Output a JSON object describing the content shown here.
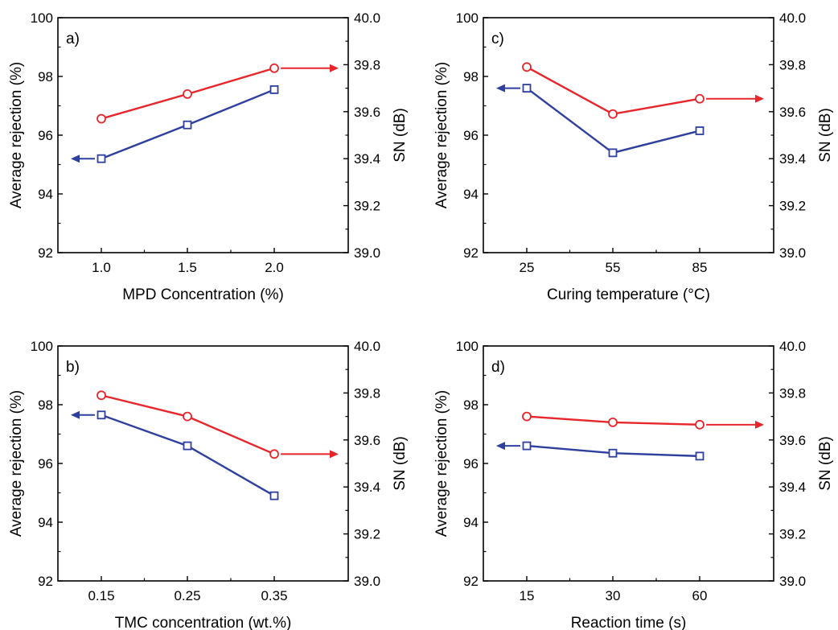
{
  "figure": {
    "colors": {
      "rejection_series": "#2e3f9e",
      "sn_series": "#e8252b",
      "axis": "#000000"
    }
  },
  "chart_data": [
    {
      "type": "line",
      "panel_label": "a)",
      "xlabel": "MPD Concentration (%)",
      "ylabel_left": "Average rejection (%)",
      "ylabel_right": "SN (dB)",
      "categories": [
        "1.0",
        "1.5",
        "2.0"
      ],
      "ylim_left": [
        92,
        100
      ],
      "yticks_left": [
        "92",
        "94",
        "96",
        "98",
        "100"
      ],
      "ylim_right": [
        39.0,
        40.0
      ],
      "yticks_right": [
        "39.0",
        "39.2",
        "39.4",
        "39.6",
        "39.8",
        "40.0"
      ],
      "series": [
        {
          "axis": "left",
          "marker": "square",
          "color": "#2e3f9e",
          "values": [
            95.2,
            96.35,
            97.55
          ]
        },
        {
          "axis": "right",
          "marker": "circle",
          "color": "#e8252b",
          "values": [
            39.57,
            39.675,
            39.785
          ]
        }
      ],
      "arrows": {
        "left_series_points_to": "left",
        "right_series_points_to": "right"
      }
    },
    {
      "type": "line",
      "panel_label": "c)",
      "xlabel": "Curing temperature (°C)",
      "ylabel_left": "Average rejection (%)",
      "ylabel_right": "SN (dB)",
      "categories": [
        "25",
        "55",
        "85"
      ],
      "ylim_left": [
        92,
        100
      ],
      "yticks_left": [
        "92",
        "94",
        "96",
        "98",
        "100"
      ],
      "ylim_right": [
        39.0,
        40.0
      ],
      "yticks_right": [
        "39.0",
        "39.2",
        "39.4",
        "39.6",
        "39.8",
        "40.0"
      ],
      "series": [
        {
          "axis": "left",
          "marker": "square",
          "color": "#2e3f9e",
          "values": [
            97.6,
            95.4,
            96.15
          ]
        },
        {
          "axis": "right",
          "marker": "circle",
          "color": "#e8252b",
          "values": [
            39.79,
            39.59,
            39.655
          ]
        }
      ],
      "arrows": {
        "left_series_points_to": "left",
        "right_series_points_to": "right"
      }
    },
    {
      "type": "line",
      "panel_label": "b)",
      "xlabel": "TMC concentration (wt.%)",
      "ylabel_left": "Average rejection (%)",
      "ylabel_right": "SN (dB)",
      "categories": [
        "0.15",
        "0.25",
        "0.35"
      ],
      "ylim_left": [
        92,
        100
      ],
      "yticks_left": [
        "92",
        "94",
        "96",
        "98",
        "100"
      ],
      "ylim_right": [
        39.0,
        40.0
      ],
      "yticks_right": [
        "39.0",
        "39.2",
        "39.4",
        "39.6",
        "39.8",
        "40.0"
      ],
      "series": [
        {
          "axis": "left",
          "marker": "square",
          "color": "#2e3f9e",
          "values": [
            97.65,
            96.6,
            94.9
          ]
        },
        {
          "axis": "right",
          "marker": "circle",
          "color": "#e8252b",
          "values": [
            39.79,
            39.7,
            39.54
          ]
        }
      ],
      "arrows": {
        "left_series_points_to": "left",
        "right_series_points_to": "right"
      }
    },
    {
      "type": "line",
      "panel_label": "d)",
      "xlabel": "Reaction time (s)",
      "ylabel_left": "Average rejection (%)",
      "ylabel_right": "SN (dB)",
      "categories": [
        "15",
        "30",
        "60"
      ],
      "ylim_left": [
        92,
        100
      ],
      "yticks_left": [
        "92",
        "94",
        "96",
        "98",
        "100"
      ],
      "ylim_right": [
        39.0,
        40.0
      ],
      "yticks_right": [
        "39.0",
        "39.2",
        "39.4",
        "39.6",
        "39.8",
        "40.0"
      ],
      "series": [
        {
          "axis": "left",
          "marker": "square",
          "color": "#2e3f9e",
          "values": [
            96.6,
            96.35,
            96.25
          ]
        },
        {
          "axis": "right",
          "marker": "circle",
          "color": "#e8252b",
          "values": [
            39.7,
            39.675,
            39.665
          ]
        }
      ],
      "arrows": {
        "left_series_points_to": "left",
        "right_series_points_to": "right"
      }
    }
  ]
}
